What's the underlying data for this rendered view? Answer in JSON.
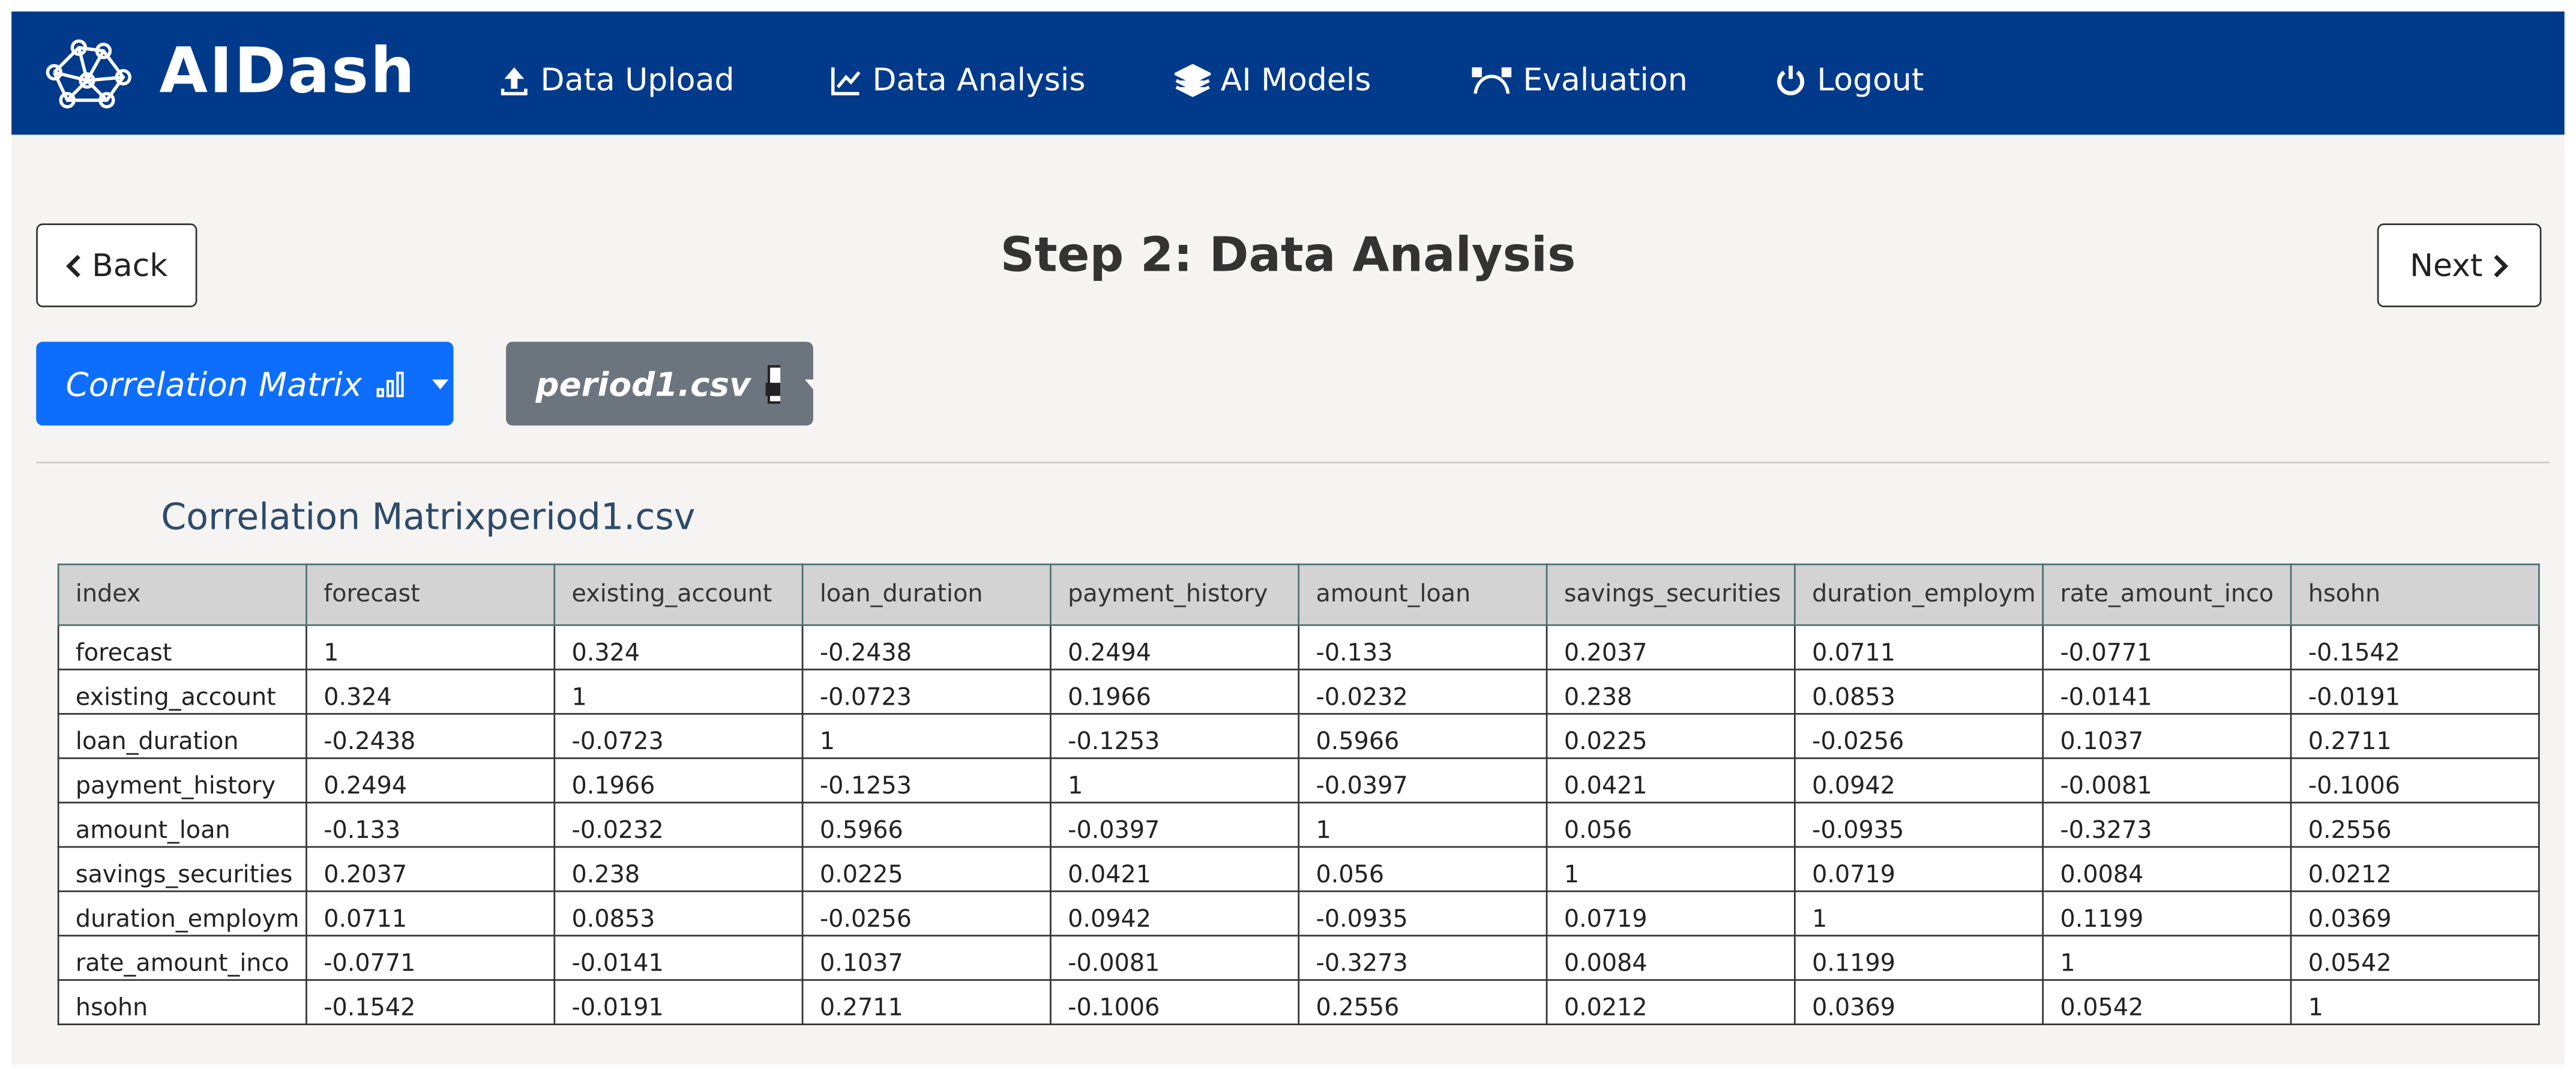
{
  "navbar": {
    "brand": "AIDash",
    "items": [
      "Data Upload",
      "Data Analysis",
      "AI Models",
      "Evaluation",
      "Logout"
    ]
  },
  "header": {
    "back": "Back",
    "title": "Step 2: Data Analysis",
    "next": "Next"
  },
  "controls": {
    "analysis_dropdown": "Correlation Matrix",
    "file_dropdown": "period1.csv"
  },
  "table": {
    "title": "Correlation Matrixperiod1.csv",
    "columns": [
      "index",
      "forecast",
      "existing_account",
      "loan_duration",
      "payment_history",
      "amount_loan",
      "savings_securities",
      "duration_employm",
      "rate_amount_inco",
      "hsohn"
    ],
    "rows": [
      [
        "forecast",
        1,
        0.324,
        -0.2438,
        0.2494,
        -0.133,
        0.2037,
        0.0711,
        -0.0771,
        -0.1542
      ],
      [
        "existing_account",
        0.324,
        1,
        -0.0723,
        0.1966,
        -0.0232,
        0.238,
        0.0853,
        -0.0141,
        -0.0191
      ],
      [
        "loan_duration",
        -0.2438,
        -0.0723,
        1,
        -0.1253,
        0.5966,
        0.0225,
        -0.0256,
        0.1037,
        0.2711
      ],
      [
        "payment_history",
        0.2494,
        0.1966,
        -0.1253,
        1,
        -0.0397,
        0.0421,
        0.0942,
        -0.0081,
        -0.1006
      ],
      [
        "amount_loan",
        -0.133,
        -0.0232,
        0.5966,
        -0.0397,
        1,
        0.056,
        -0.0935,
        -0.3273,
        0.2556
      ],
      [
        "savings_securities",
        0.2037,
        0.238,
        0.0225,
        0.0421,
        0.056,
        1,
        0.0719,
        0.0084,
        0.0212
      ],
      [
        "duration_employm",
        0.0711,
        0.0853,
        -0.0256,
        0.0942,
        -0.0935,
        0.0719,
        1,
        0.1199,
        0.0369
      ],
      [
        "rate_amount_inco",
        -0.0771,
        -0.0141,
        0.1037,
        -0.0081,
        -0.3273,
        0.0084,
        0.1199,
        1,
        0.0542
      ],
      [
        "hsohn",
        -0.1542,
        -0.0191,
        0.2711,
        -0.1006,
        0.2556,
        0.0212,
        0.0369,
        0.0542,
        1
      ]
    ]
  }
}
